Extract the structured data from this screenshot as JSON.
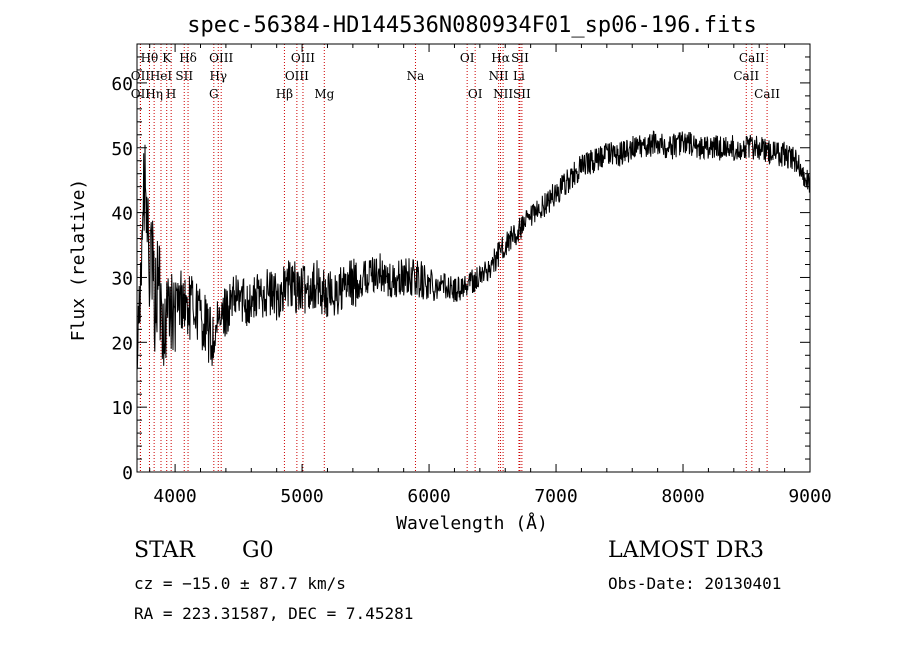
{
  "chart_data": {
    "type": "line",
    "title": "spec-56384-HD144536N080934F01_sp06-196.fits",
    "xlabel": "Wavelength (Å)",
    "ylabel": "Flux (relative)",
    "xlim": [
      3700,
      9000
    ],
    "ylim": [
      0,
      66
    ],
    "xticks": [
      4000,
      5000,
      6000,
      7000,
      8000,
      9000
    ],
    "yticks": [
      0,
      10,
      20,
      30,
      40,
      50,
      60
    ],
    "grid": false,
    "series": [
      {
        "name": "flux",
        "wavelength": [
          3700,
          3720,
          3740,
          3760,
          3780,
          3800,
          3820,
          3840,
          3860,
          3880,
          3900,
          3920,
          3940,
          3960,
          3980,
          4000,
          4050,
          4100,
          4150,
          4200,
          4250,
          4300,
          4350,
          4400,
          4500,
          4600,
          4700,
          4800,
          4900,
          5000,
          5100,
          5200,
          5300,
          5400,
          5500,
          5600,
          5700,
          5800,
          5900,
          6000,
          6100,
          6200,
          6300,
          6400,
          6500,
          6560,
          6600,
          6700,
          6800,
          6900,
          7000,
          7100,
          7200,
          7300,
          7400,
          7500,
          7600,
          7700,
          7800,
          7900,
          8000,
          8100,
          8200,
          8300,
          8400,
          8500,
          8600,
          8700,
          8800,
          8900,
          8950,
          9000
        ],
        "flux": [
          14,
          28,
          35,
          44,
          38,
          30,
          32,
          25,
          29,
          27,
          24,
          22,
          25,
          27,
          23,
          24,
          27,
          25,
          26,
          24,
          22,
          20,
          23,
          25,
          27,
          26,
          28,
          27,
          29,
          28,
          29,
          27,
          28,
          29,
          30,
          31,
          29,
          30,
          30,
          29,
          29,
          28,
          29,
          30,
          32,
          34,
          35,
          37,
          39,
          41,
          43,
          45,
          47,
          48,
          49,
          49,
          50,
          50,
          51,
          50,
          51,
          50,
          50,
          50,
          50,
          50,
          50,
          49,
          49,
          48,
          46,
          44
        ],
        "noise": [
          4,
          6,
          8,
          9,
          9,
          8,
          8,
          8,
          8,
          8,
          7,
          7,
          7,
          7,
          7,
          6,
          5,
          5,
          5,
          5,
          5,
          5,
          4,
          4,
          4,
          4,
          4,
          4,
          4,
          4,
          4,
          4,
          4,
          4,
          3,
          3,
          3,
          3,
          3,
          3,
          2,
          2,
          2,
          2,
          2,
          2,
          2,
          2,
          2,
          2,
          2,
          2,
          2,
          2,
          2,
          2,
          2,
          2,
          2,
          2,
          2,
          2,
          2,
          2,
          2,
          2,
          2,
          2,
          2,
          2,
          2,
          2
        ]
      }
    ],
    "line_markers": [
      {
        "label": "OII",
        "wavelength": 3727,
        "row": 2
      },
      {
        "label": "Hθ",
        "wavelength": 3798,
        "row": 1
      },
      {
        "label": "OII",
        "wavelength": 3727,
        "row": 3
      },
      {
        "label": "Hη",
        "wavelength": 3835,
        "row": 3
      },
      {
        "label": "HeI",
        "wavelength": 3889,
        "row": 2
      },
      {
        "label": "K",
        "wavelength": 3934,
        "row": 1
      },
      {
        "label": "H",
        "wavelength": 3969,
        "row": 3
      },
      {
        "label": "SII",
        "wavelength": 4072,
        "row": 2
      },
      {
        "label": "Hδ",
        "wavelength": 4102,
        "row": 1
      },
      {
        "label": "G",
        "wavelength": 4305,
        "row": 3
      },
      {
        "label": "OIII",
        "wavelength": 4363,
        "row": 1
      },
      {
        "label": "Hγ",
        "wavelength": 4340,
        "row": 2
      },
      {
        "label": "Hβ",
        "wavelength": 4861,
        "row": 3
      },
      {
        "label": "OIII",
        "wavelength": 4959,
        "row": 2
      },
      {
        "label": "OIII",
        "wavelength": 5007,
        "row": 1
      },
      {
        "label": "Mg",
        "wavelength": 5175,
        "row": 3
      },
      {
        "label": "Na",
        "wavelength": 5893,
        "row": 2
      },
      {
        "label": "OI",
        "wavelength": 6300,
        "row": 1
      },
      {
        "label": "OI",
        "wavelength": 6363,
        "row": 3
      },
      {
        "label": "NII",
        "wavelength": 6548,
        "row": 2
      },
      {
        "label": "Hα",
        "wavelength": 6563,
        "row": 1
      },
      {
        "label": "NII",
        "wavelength": 6583,
        "row": 3
      },
      {
        "label": "Li",
        "wavelength": 6708,
        "row": 2
      },
      {
        "label": "SII",
        "wavelength": 6716,
        "row": 1
      },
      {
        "label": "SII",
        "wavelength": 6731,
        "row": 3
      },
      {
        "label": "CaII",
        "wavelength": 8498,
        "row": 2
      },
      {
        "label": "CaII",
        "wavelength": 8542,
        "row": 1
      },
      {
        "label": "CaII",
        "wavelength": 8662,
        "row": 3
      }
    ],
    "marker_color": "#cc0000"
  },
  "info": {
    "object_class": "STAR",
    "subclass": "G0",
    "survey": "LAMOST DR3",
    "velocity": "cz = −15.0 ± 87.7 km/s",
    "obs_date": "Obs-Date: 20130401",
    "coords": "RA = 223.31587, DEC =   7.45281"
  }
}
